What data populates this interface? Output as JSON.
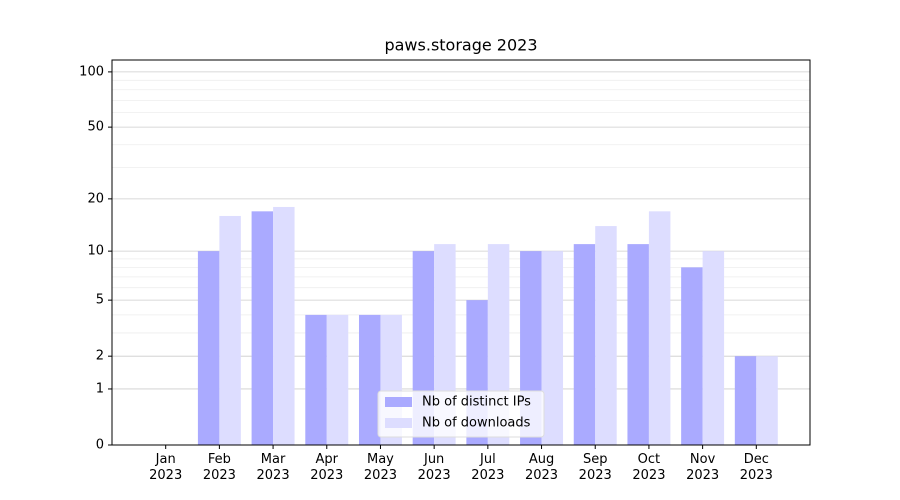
{
  "chart_data": {
    "type": "bar",
    "title": "paws.storage 2023",
    "categories": [
      "Jan 2023",
      "Feb 2023",
      "Mar 2023",
      "Apr 2023",
      "May 2023",
      "Jun 2023",
      "Jul 2023",
      "Aug 2023",
      "Sep 2023",
      "Oct 2023",
      "Nov 2023",
      "Dec 2023"
    ],
    "series": [
      {
        "name": "Nb of distinct IPs",
        "color": "#aaaaff",
        "values": [
          0,
          10,
          17,
          4,
          4,
          10,
          5,
          10,
          11,
          11,
          8,
          2
        ]
      },
      {
        "name": "Nb of downloads",
        "color": "#ddddff",
        "values": [
          0,
          16,
          18,
          4,
          4,
          11,
          11,
          10,
          14,
          17,
          10,
          2
        ]
      }
    ],
    "yscale": "log1p",
    "ylim": [
      0,
      116
    ],
    "yticks": [
      0,
      1,
      2,
      5,
      10,
      20,
      50,
      100
    ],
    "yminor": [
      3,
      4,
      6,
      7,
      8,
      9,
      30,
      40,
      60,
      70,
      80,
      90
    ],
    "grid": true,
    "legend": "lower center"
  }
}
